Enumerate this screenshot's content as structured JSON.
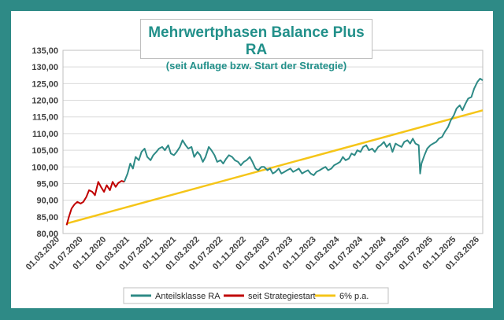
{
  "chart_data": {
    "type": "line",
    "title": "Mehrwertphasen Balance Plus RA",
    "subtitle": "(seit Auflage bzw. Start der Strategie)",
    "xlabel": "",
    "ylabel": "",
    "ylim": [
      80,
      135
    ],
    "yticks": [
      "80,00",
      "85,00",
      "90,00",
      "95,00",
      "100,00",
      "105,00",
      "110,00",
      "115,00",
      "120,00",
      "125,00",
      "130,00",
      "135,00"
    ],
    "xticks": [
      "01.03.2020",
      "01.07.2020",
      "01.11.2020",
      "01.03.2021",
      "01.07.2021",
      "01.11.2021",
      "01.03.2022",
      "01.07.2022",
      "01.11.2022",
      "01.03.2023",
      "01.07.2023",
      "01.11.2023",
      "01.03.2024",
      "01.07.2024",
      "01.11.2024",
      "01.03.2025",
      "01.07.2025",
      "01.11.2025",
      "01.03.2026"
    ],
    "xlim": [
      "2020-03-01",
      "2026-03-01"
    ],
    "grid": "horizontal",
    "legend_position": "bottom",
    "colors": {
      "Anteilsklasse RA": "#2e8a86",
      "seit Strategiestart": "#c00000",
      "6% p.a.": "#f5c518"
    },
    "series": [
      {
        "name": "seit Strategiestart",
        "x": [
          "2020-03-20",
          "2020-04-01",
          "2020-04-15",
          "2020-05-01",
          "2020-05-15",
          "2020-06-01",
          "2020-06-15",
          "2020-07-01",
          "2020-07-15",
          "2020-08-01",
          "2020-08-15",
          "2020-09-01",
          "2020-09-15",
          "2020-10-01",
          "2020-10-15",
          "2020-11-01",
          "2020-11-15",
          "2020-12-01",
          "2020-12-15",
          "2021-01-01",
          "2021-01-15"
        ],
        "y": [
          82.5,
          85.0,
          87.5,
          88.8,
          89.5,
          89.0,
          89.5,
          91.0,
          93.0,
          92.5,
          91.5,
          95.5,
          94.0,
          92.5,
          94.5,
          93.0,
          95.5,
          94.0,
          95.2,
          95.8,
          95.5
        ]
      },
      {
        "name": "Anteilsklasse RA",
        "x": [
          "2021-01-15",
          "2021-02-01",
          "2021-02-15",
          "2021-03-01",
          "2021-03-15",
          "2021-04-01",
          "2021-04-15",
          "2021-05-01",
          "2021-05-15",
          "2021-06-01",
          "2021-06-15",
          "2021-07-01",
          "2021-07-15",
          "2021-08-01",
          "2021-08-15",
          "2021-09-01",
          "2021-09-15",
          "2021-10-01",
          "2021-10-15",
          "2021-11-01",
          "2021-11-15",
          "2021-12-01",
          "2021-12-15",
          "2022-01-01",
          "2022-01-15",
          "2022-02-01",
          "2022-02-15",
          "2022-03-01",
          "2022-03-15",
          "2022-04-01",
          "2022-04-15",
          "2022-05-01",
          "2022-05-15",
          "2022-06-01",
          "2022-06-15",
          "2022-07-01",
          "2022-07-15",
          "2022-08-01",
          "2022-08-15",
          "2022-09-01",
          "2022-09-15",
          "2022-10-01",
          "2022-10-15",
          "2022-11-01",
          "2022-11-15",
          "2022-12-01",
          "2022-12-15",
          "2023-01-01",
          "2023-01-15",
          "2023-02-01",
          "2023-02-15",
          "2023-03-01",
          "2023-03-15",
          "2023-04-01",
          "2023-04-15",
          "2023-05-01",
          "2023-05-15",
          "2023-06-01",
          "2023-06-15",
          "2023-07-01",
          "2023-07-15",
          "2023-08-01",
          "2023-08-15",
          "2023-09-01",
          "2023-09-15",
          "2023-10-01",
          "2023-10-15",
          "2023-11-01",
          "2023-11-15",
          "2023-12-01",
          "2023-12-15",
          "2024-01-01",
          "2024-01-15",
          "2024-02-01",
          "2024-02-15",
          "2024-03-01",
          "2024-03-15",
          "2024-04-01",
          "2024-04-15",
          "2024-05-01",
          "2024-05-15",
          "2024-06-01",
          "2024-06-15",
          "2024-07-01",
          "2024-07-15",
          "2024-08-01",
          "2024-08-15",
          "2024-09-01",
          "2024-09-15",
          "2024-10-01",
          "2024-10-15",
          "2024-11-01",
          "2024-11-15",
          "2024-12-01",
          "2024-12-15",
          "2025-01-01",
          "2025-01-15",
          "2025-02-01",
          "2025-02-15",
          "2025-03-01",
          "2025-03-15",
          "2025-04-01",
          "2025-04-08",
          "2025-04-15",
          "2025-05-01",
          "2025-05-15",
          "2025-06-01",
          "2025-06-15",
          "2025-07-01",
          "2025-07-15",
          "2025-08-01",
          "2025-08-15",
          "2025-09-01",
          "2025-09-15",
          "2025-10-01",
          "2025-10-15",
          "2025-11-01",
          "2025-11-15",
          "2025-12-01",
          "2025-12-15",
          "2026-01-01",
          "2026-01-15",
          "2026-02-01",
          "2026-02-15",
          "2026-03-01"
        ],
        "y": [
          95.5,
          98.0,
          101.0,
          99.5,
          103.0,
          102.0,
          104.5,
          105.5,
          103.0,
          102.0,
          103.5,
          104.5,
          105.5,
          106.0,
          105.0,
          106.5,
          104.0,
          103.5,
          104.5,
          106.0,
          108.0,
          106.5,
          105.5,
          106.0,
          103.0,
          104.5,
          103.5,
          101.5,
          103.0,
          106.0,
          105.0,
          103.5,
          101.5,
          102.0,
          101.0,
          102.5,
          103.5,
          103.0,
          102.0,
          101.5,
          100.5,
          101.5,
          102.0,
          103.0,
          101.5,
          99.5,
          99.0,
          100.0,
          100.0,
          99.0,
          99.5,
          98.0,
          98.5,
          99.5,
          98.0,
          98.5,
          99.0,
          99.5,
          98.5,
          99.0,
          99.5,
          98.0,
          98.5,
          99.0,
          98.0,
          97.5,
          98.5,
          99.0,
          99.5,
          100.0,
          99.0,
          99.5,
          100.5,
          101.0,
          101.5,
          103.0,
          102.0,
          102.5,
          104.0,
          103.5,
          105.0,
          104.5,
          106.0,
          106.5,
          105.0,
          105.5,
          104.5,
          106.0,
          106.5,
          107.5,
          106.0,
          107.0,
          104.5,
          107.0,
          106.5,
          106.0,
          107.5,
          108.0,
          107.0,
          108.5,
          107.0,
          106.5,
          98.0,
          101.0,
          103.5,
          105.5,
          106.5,
          107.0,
          107.5,
          108.5,
          109.0,
          110.5,
          112.0,
          114.0,
          115.5,
          117.5,
          118.5,
          117.0,
          119.0,
          120.5,
          121.0,
          123.5,
          125.5,
          126.5,
          126.0
        ]
      },
      {
        "name": "6% p.a.",
        "x": [
          "2020-03-20",
          "2026-03-01"
        ],
        "y": [
          83.0,
          117.0
        ]
      }
    ]
  }
}
